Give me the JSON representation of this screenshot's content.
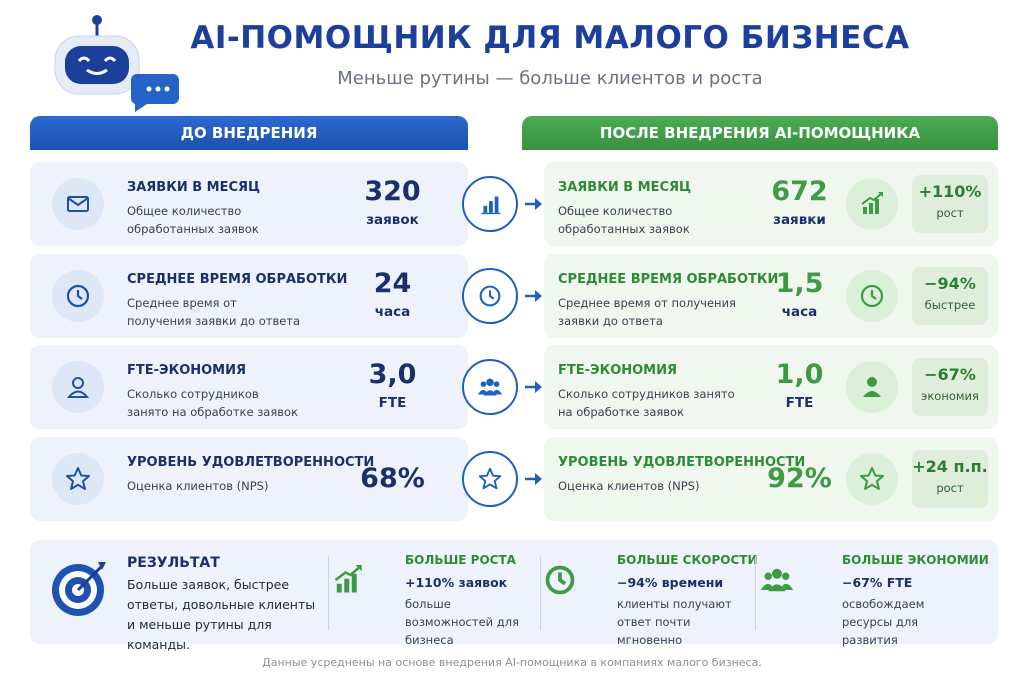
{
  "header": {
    "title": "AI-ПОМОЩНИК ДЛЯ МАЛОГО БИЗНЕСА",
    "subtitle": "Меньше рутины — больше клиентов и роста"
  },
  "before": {
    "heading": "ДО ВНЕДРЕНИЯ",
    "rows": [
      {
        "title": "ЗАЯВКИ В МЕСЯЦ",
        "description": "Общее количество обработанных заявок",
        "value": "320",
        "unit": "заявок"
      },
      {
        "title": "СРЕДНЕЕ ВРЕМЯ ОБРАБОТКИ",
        "description": "Среднее время от получения заявки до ответа",
        "value": "24",
        "unit": "часа"
      },
      {
        "title": "FTE-ЭКОНОМИЯ",
        "description": "Сколько сотрудников занято на обработке заявок",
        "value": "3,0",
        "unit": "FTE"
      },
      {
        "title": "УРОВЕНЬ УДОВЛЕТВОРЕННОСТИ",
        "description": "Оценка клиентов (NPS)",
        "value": "68%"
      }
    ]
  },
  "after": {
    "heading": "ПОСЛЕ ВНЕДРЕНИЯ AI-ПОМОЩНИКА",
    "rows": [
      {
        "title": "ЗАЯВКИ В МЕСЯЦ",
        "description": "Общее количество обработанных заявок",
        "value": "672",
        "unit": "заявки",
        "change": "+110%",
        "change_label": "рост"
      },
      {
        "title": "СРЕДНЕЕ ВРЕМЯ ОБРАБОТКИ",
        "description": "Среднее время от получения заявки до ответа",
        "value": "1,5",
        "unit": "часа",
        "change": "−94%",
        "change_label": "быстрее"
      },
      {
        "title": "FTE-ЭКОНОМИЯ",
        "description": "Сколько сотрудников занято на обработке заявок",
        "value": "1,0",
        "unit": "FTE",
        "change": "−67%",
        "change_label": "экономия"
      },
      {
        "title": "УРОВЕНЬ УДОВЛЕТВОРЕННОСТИ",
        "description": "Оценка клиентов (NPS)",
        "value": "92%",
        "change": "+24 п.п.",
        "change_label": "рост"
      }
    ]
  },
  "result": {
    "title": "РЕЗУЛЬТАТ",
    "text": "Больше заявок, быстрее ответы, довольные клиенты и меньше рутины для команды.",
    "benefits": [
      {
        "title": "БОЛЬШЕ РОСТА",
        "highlight": "+110% заявок",
        "text": "больше возможностей для бизнеса"
      },
      {
        "title": "БОЛЬШЕ СКОРОСТИ",
        "highlight": "−94% времени",
        "text": "клиенты получают ответ почти мгновенно"
      },
      {
        "title": "БОЛЬШЕ ЭКОНОМИИ",
        "highlight": "−67% FTE",
        "text": "освобождаем ресурсы для развития"
      }
    ]
  },
  "footnote": "Данные усреднены на основе внедрения AI-помощника в компаниях малого бизнеса."
}
